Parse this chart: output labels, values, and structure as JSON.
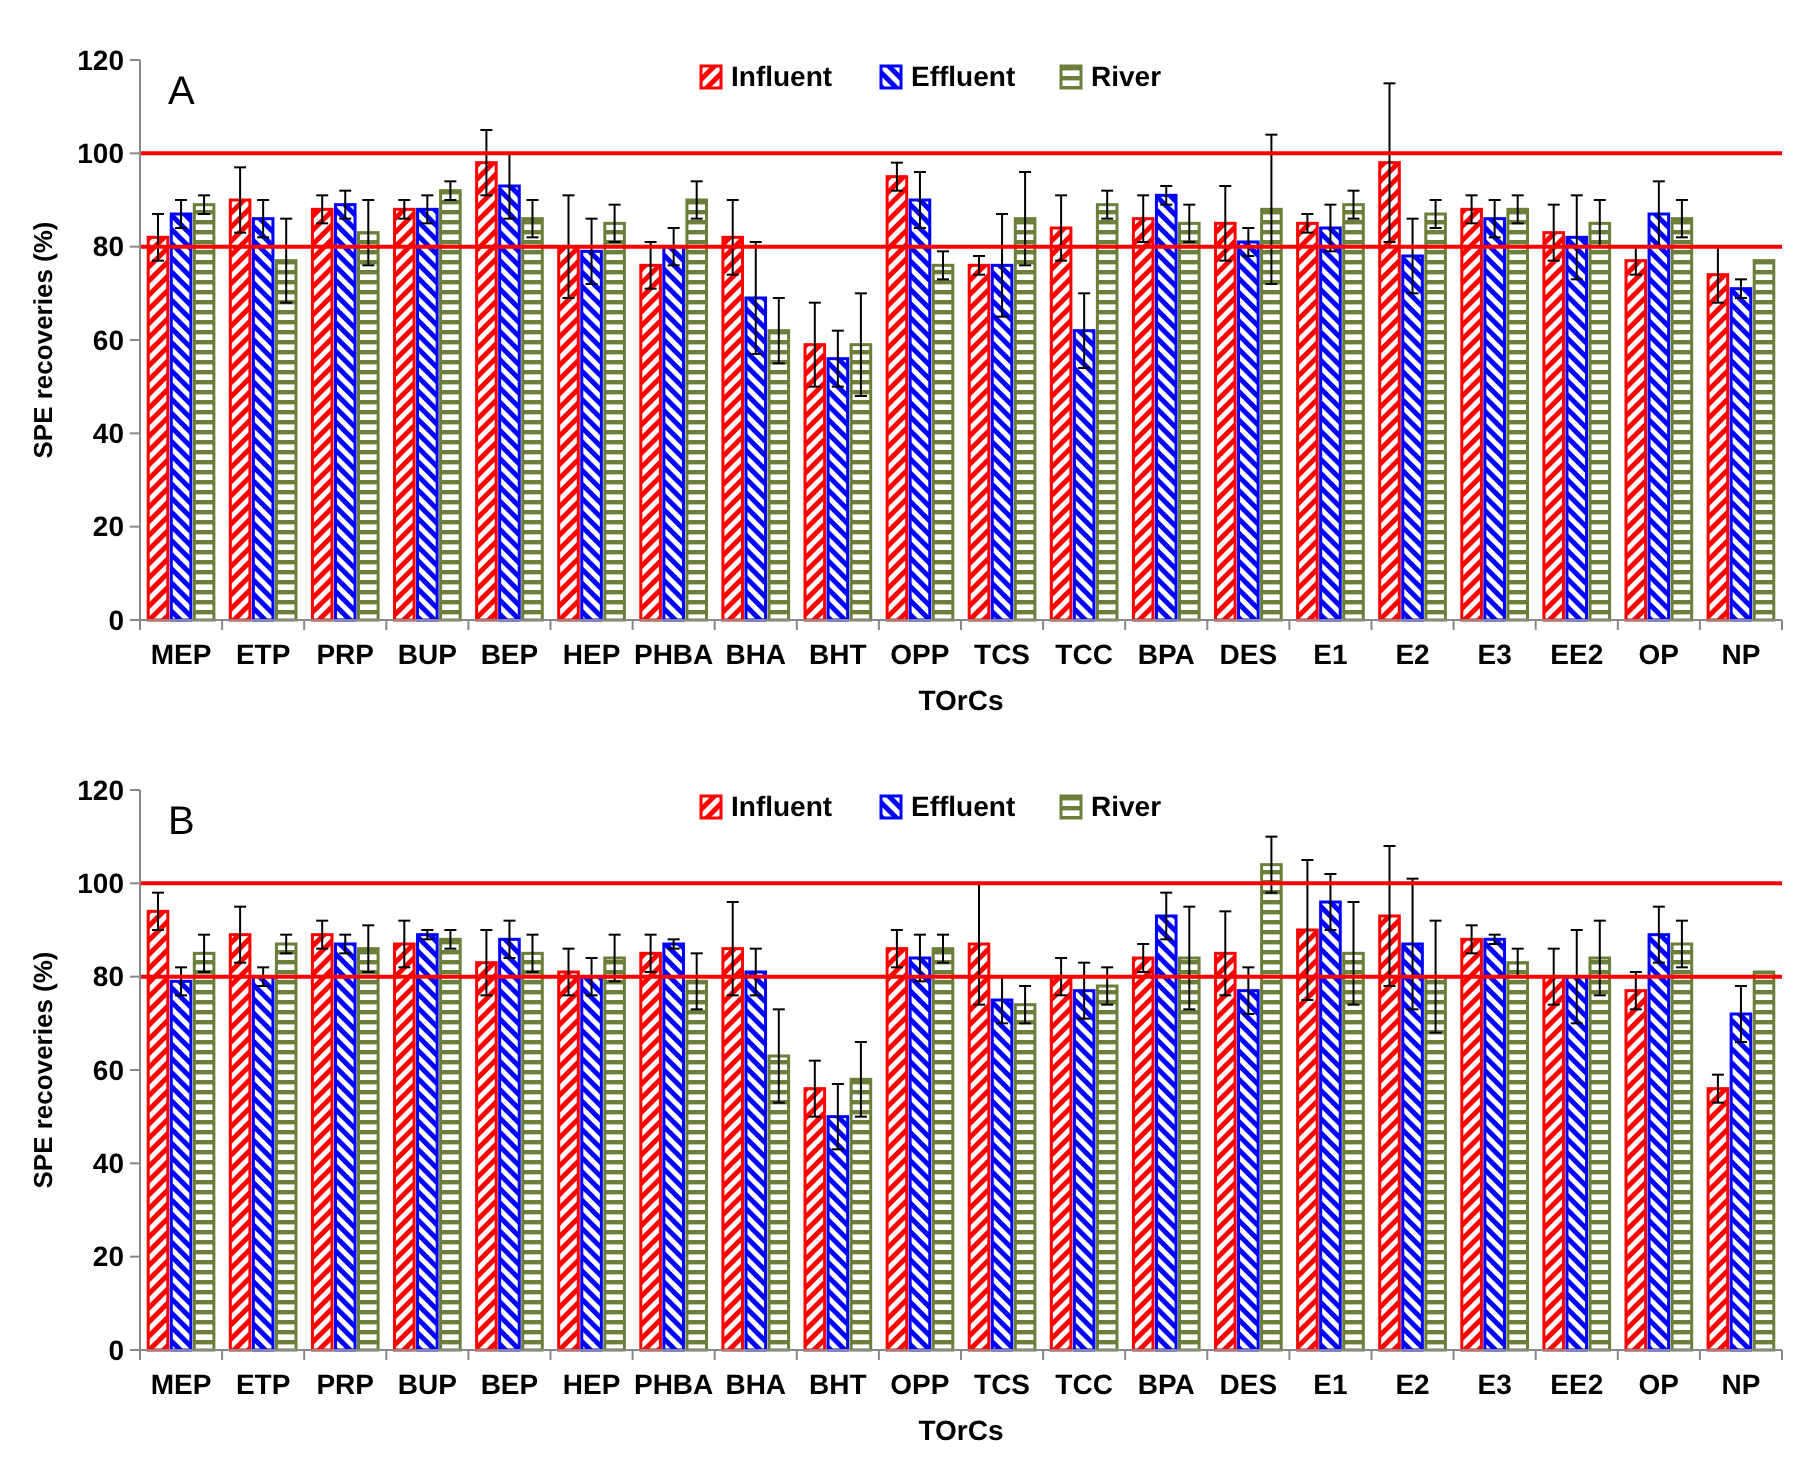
{
  "chart_data": [
    {
      "type": "bar",
      "annotations": [
        "A"
      ],
      "xlabel": "TOrCs",
      "ylabel": "SPE recoveries (%)",
      "categories": [
        "MEP",
        "ETP",
        "PRP",
        "BUP",
        "BEP",
        "HEP",
        "PHBA",
        "BHA",
        "BHT",
        "OPP",
        "TCS",
        "TCC",
        "BPA",
        "DES",
        "E1",
        "E2",
        "E3",
        "EE2",
        "OP",
        "NP"
      ],
      "ylim": [
        0,
        120
      ],
      "yticks": [
        0,
        20,
        40,
        60,
        80,
        100,
        120
      ],
      "grid": false,
      "legend": "top",
      "ref_lines": [
        {
          "axis": "y",
          "value": 80,
          "color": "#ff0000"
        },
        {
          "axis": "y",
          "value": 100,
          "color": "#ff0000"
        }
      ],
      "series": [
        {
          "name": "Influent",
          "color": "#ff0000",
          "values": [
            82,
            90,
            88,
            88,
            98,
            80,
            76,
            82,
            59,
            95,
            76,
            84,
            86,
            85,
            85,
            98,
            88,
            83,
            77,
            74
          ],
          "errors": [
            5,
            7,
            3,
            2,
            7,
            11,
            5,
            8,
            9,
            3,
            2,
            7,
            5,
            8,
            2,
            17,
            3,
            6,
            3,
            6
          ]
        },
        {
          "name": "Effluent",
          "color": "#0000ff",
          "values": [
            87,
            86,
            89,
            88,
            93,
            79,
            80,
            69,
            56,
            90,
            76,
            62,
            91,
            81,
            84,
            78,
            86,
            82,
            87,
            71
          ],
          "errors": [
            3,
            4,
            3,
            3,
            7,
            7,
            4,
            12,
            6,
            6,
            11,
            8,
            2,
            3,
            5,
            8,
            4,
            9,
            7,
            2
          ]
        },
        {
          "name": "River",
          "color": "#6b7f3a",
          "values": [
            89,
            77,
            83,
            92,
            86,
            85,
            90,
            62,
            59,
            76,
            86,
            89,
            85,
            88,
            89,
            87,
            88,
            85,
            86,
            77
          ],
          "errors": [
            2,
            9,
            7,
            2,
            4,
            4,
            4,
            7,
            11,
            3,
            10,
            3,
            4,
            16,
            3,
            3,
            3,
            5,
            4,
            null
          ]
        }
      ]
    },
    {
      "type": "bar",
      "annotations": [
        "B"
      ],
      "xlabel": "TOrCs",
      "ylabel": "SPE recoveries (%)",
      "categories": [
        "MEP",
        "ETP",
        "PRP",
        "BUP",
        "BEP",
        "HEP",
        "PHBA",
        "BHA",
        "BHT",
        "OPP",
        "TCS",
        "TCC",
        "BPA",
        "DES",
        "E1",
        "E2",
        "E3",
        "EE2",
        "OP",
        "NP"
      ],
      "ylim": [
        0,
        120
      ],
      "yticks": [
        0,
        20,
        40,
        60,
        80,
        100,
        120
      ],
      "grid": false,
      "legend": "top",
      "ref_lines": [
        {
          "axis": "y",
          "value": 80,
          "color": "#ff0000"
        },
        {
          "axis": "y",
          "value": 100,
          "color": "#ff0000"
        }
      ],
      "series": [
        {
          "name": "Influent",
          "color": "#ff0000",
          "values": [
            94,
            89,
            89,
            87,
            83,
            81,
            85,
            86,
            56,
            86,
            87,
            80,
            84,
            85,
            90,
            93,
            88,
            80,
            77,
            56
          ],
          "errors": [
            4,
            6,
            3,
            5,
            7,
            5,
            4,
            10,
            6,
            4,
            13,
            4,
            3,
            9,
            15,
            15,
            3,
            6,
            4,
            3
          ]
        },
        {
          "name": "Effluent",
          "color": "#0000ff",
          "values": [
            79,
            80,
            87,
            89,
            88,
            80,
            87,
            81,
            50,
            84,
            75,
            77,
            93,
            77,
            96,
            87,
            88,
            80,
            89,
            72
          ],
          "errors": [
            3,
            2,
            2,
            1,
            4,
            4,
            1,
            5,
            7,
            5,
            5,
            6,
            5,
            5,
            6,
            14,
            1,
            10,
            6,
            6
          ]
        },
        {
          "name": "River",
          "color": "#6b7f3a",
          "values": [
            85,
            87,
            86,
            88,
            85,
            84,
            79,
            63,
            58,
            86,
            74,
            78,
            84,
            104,
            85,
            80,
            83,
            84,
            87,
            81
          ],
          "errors": [
            4,
            2,
            5,
            2,
            4,
            5,
            6,
            10,
            8,
            3,
            4,
            4,
            11,
            6,
            11,
            12,
            3,
            8,
            5,
            null
          ]
        }
      ]
    }
  ]
}
